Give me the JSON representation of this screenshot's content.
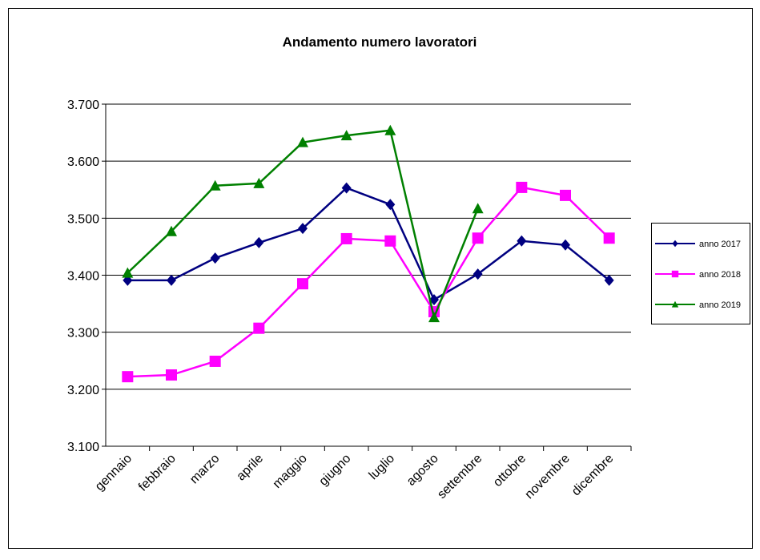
{
  "chart_data": {
    "type": "line",
    "title": "Andamento numero lavoratori",
    "categories": [
      "gennaio",
      "febbraio",
      "marzo",
      "aprile",
      "maggio",
      "giugno",
      "luglio",
      "agosto",
      "settembre",
      "ottobre",
      "novembre",
      "dicembre"
    ],
    "series": [
      {
        "name": "anno 2017",
        "color": "#000080",
        "marker": "diamond",
        "values": [
          3391,
          3391,
          3430,
          3457,
          3482,
          3553,
          3524,
          3357,
          3402,
          3460,
          3453,
          3391
        ]
      },
      {
        "name": "anno 2018",
        "color": "#ff00ff",
        "marker": "square",
        "values": [
          3222,
          3225,
          3249,
          3307,
          3385,
          3464,
          3460,
          3336,
          3465,
          3554,
          3540,
          3465
        ]
      },
      {
        "name": "anno 2019",
        "color": "#008000",
        "marker": "triangle",
        "values": [
          3404,
          3477,
          3557,
          3561,
          3633,
          3645,
          3654,
          3326,
          3517,
          null,
          null,
          null
        ]
      }
    ],
    "ylim": [
      3100,
      3700
    ],
    "yticks": [
      {
        "value": 3100,
        "label": "3.100"
      },
      {
        "value": 3200,
        "label": "3.200"
      },
      {
        "value": 3300,
        "label": "3.300"
      },
      {
        "value": 3400,
        "label": "3.400"
      },
      {
        "value": 3500,
        "label": "3.500"
      },
      {
        "value": 3600,
        "label": "3.600"
      },
      {
        "value": 3700,
        "label": "3.700"
      }
    ],
    "grid": true,
    "legend": "right"
  }
}
